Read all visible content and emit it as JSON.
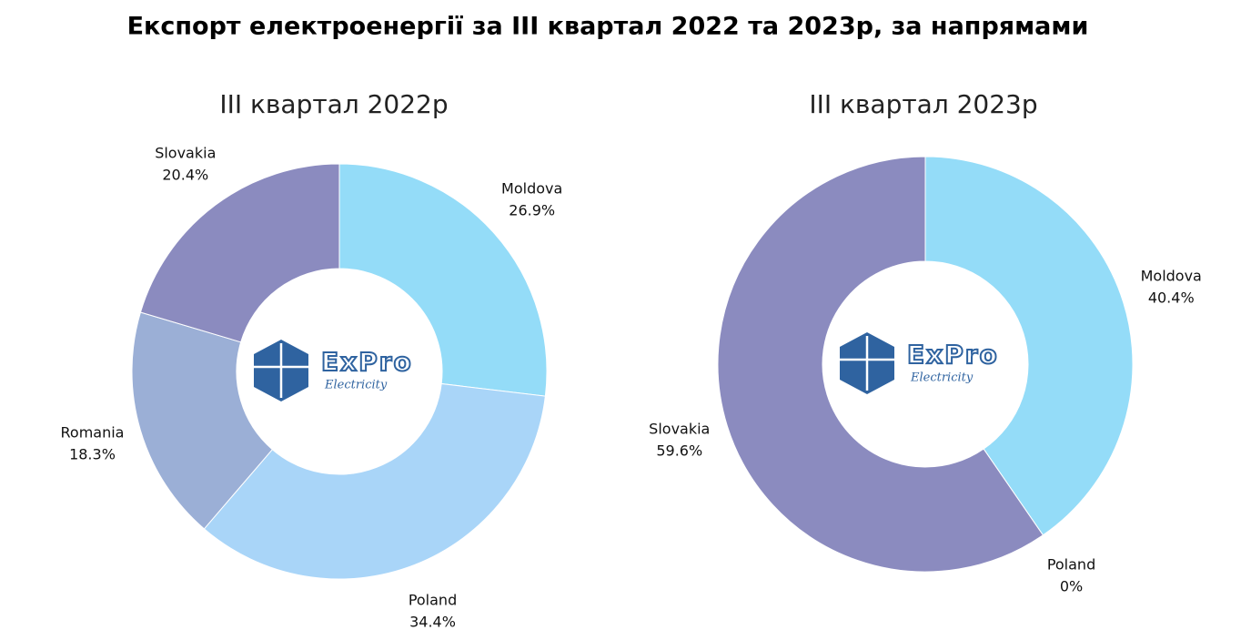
{
  "title": "Експорт електроенергії за III квартал 2022 та 2023р, за напрямами",
  "logo": {
    "name": "ExPro",
    "tagline": "Electricity"
  },
  "chart_data": [
    {
      "type": "donut",
      "title": "III квартал 2022р",
      "categories": [
        "Moldova",
        "Poland",
        "Romania",
        "Slovakia"
      ],
      "values": [
        26.9,
        34.4,
        18.3,
        20.4
      ],
      "value_labels": [
        "26.9%",
        "34.4%",
        "18.3%",
        "20.4%"
      ],
      "colors": [
        "#94dcf8",
        "#a9d5f8",
        "#9bafd6",
        "#8b8bbf"
      ]
    },
    {
      "type": "donut",
      "title": "III квартал 2023р",
      "categories": [
        "Moldova",
        "Poland",
        "Slovakia"
      ],
      "values": [
        40.4,
        0,
        59.6
      ],
      "value_labels": [
        "40.4%",
        "0%",
        "59.6%"
      ],
      "colors": [
        "#94dcf8",
        "#a9d5f8",
        "#8b8bbf"
      ]
    }
  ]
}
